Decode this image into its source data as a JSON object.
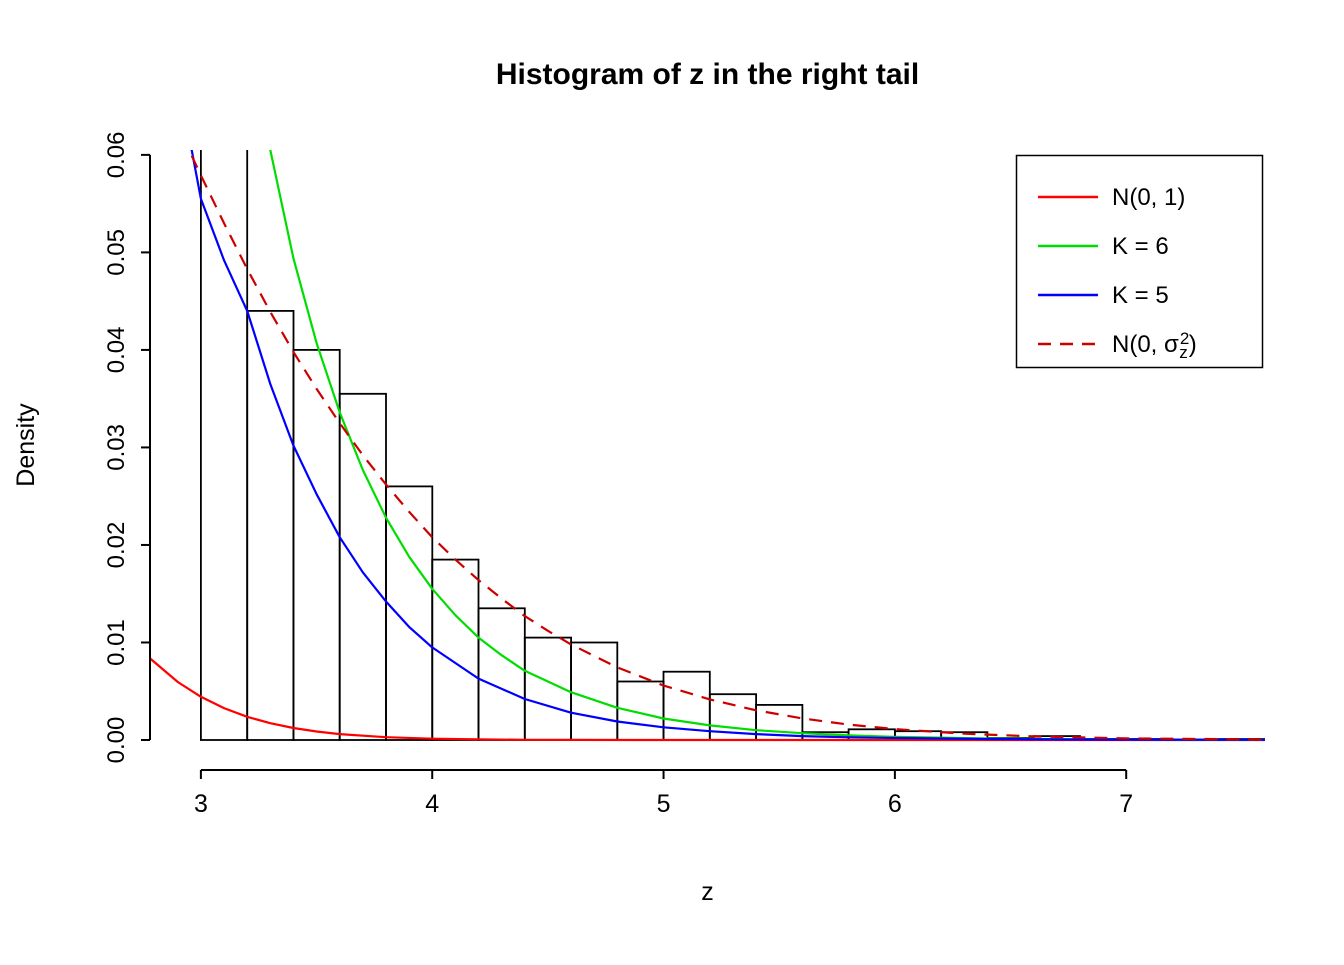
{
  "title": "Histogram of z in the right tail",
  "chart_data": {
    "type": "histogram",
    "title": "Histogram of z in the right tail",
    "xlabel": "z",
    "ylabel": "Density",
    "xlim": [
      2.78,
      7.6
    ],
    "ylim": [
      0,
      0.0605
    ],
    "x_tick_labels": [
      "3",
      "4",
      "5",
      "6",
      "7"
    ],
    "x_tick_values": [
      3,
      4,
      5,
      6,
      7
    ],
    "y_tick_labels": [
      "0.00",
      "0.01",
      "0.02",
      "0.03",
      "0.04",
      "0.05",
      "0.06"
    ],
    "y_tick_values": [
      0,
      0.01,
      0.02,
      0.03,
      0.04,
      0.05,
      0.06
    ],
    "grid": false,
    "legend_position": "top-right",
    "axis_color": "#000000",
    "histogram": {
      "bin_start": 3.0,
      "bin_width": 0.2,
      "bar_fill": "none",
      "bar_stroke": "#000000",
      "densities": [
        0.065,
        0.044,
        0.04,
        0.0355,
        0.026,
        0.0185,
        0.0135,
        0.0105,
        0.01,
        0.006,
        0.007,
        0.0047,
        0.0036,
        0.0008,
        0.0011,
        0.0009,
        0.0008,
        0.0002,
        0.0004,
        0.0001,
        0.0001,
        5e-05,
        0.0001
      ]
    },
    "series": [
      {
        "key": "n01",
        "name": "N(0, 1)",
        "color": "#ff0000",
        "dash": false,
        "label_parts": [
          {
            "t": "N(0, 1)"
          }
        ],
        "points": [
          [
            2.78,
            0.00837
          ],
          [
            2.9,
            0.00595
          ],
          [
            3.0,
            0.00443
          ],
          [
            3.1,
            0.00327
          ],
          [
            3.2,
            0.00238
          ],
          [
            3.3,
            0.00172
          ],
          [
            3.4,
            0.00123
          ],
          [
            3.5,
            0.00087
          ],
          [
            3.6,
            0.00061
          ],
          [
            3.8,
            0.00029
          ],
          [
            4.0,
            0.000134
          ],
          [
            4.2,
            5.9e-05
          ],
          [
            4.4,
            2.5e-05
          ],
          [
            4.6,
            1e-05
          ],
          [
            5.0,
            1.5e-06
          ],
          [
            5.5,
            2e-07
          ],
          [
            6.0,
            0
          ],
          [
            7.6,
            0
          ]
        ]
      },
      {
        "key": "k6",
        "name": "K = 6",
        "color": "#00dd00",
        "dash": false,
        "label_parts": [
          {
            "t": "K = 6"
          }
        ],
        "points": [
          [
            3.25,
            0.068
          ],
          [
            3.3,
            0.0605
          ],
          [
            3.4,
            0.0494
          ],
          [
            3.5,
            0.0407
          ],
          [
            3.6,
            0.0336
          ],
          [
            3.7,
            0.0277
          ],
          [
            3.8,
            0.0228
          ],
          [
            3.9,
            0.0188
          ],
          [
            4.0,
            0.0155
          ],
          [
            4.1,
            0.0128
          ],
          [
            4.2,
            0.0105
          ],
          [
            4.3,
            0.0087
          ],
          [
            4.4,
            0.0071
          ],
          [
            4.6,
            0.0049
          ],
          [
            4.8,
            0.0033
          ],
          [
            5.0,
            0.0022
          ],
          [
            5.2,
            0.0015
          ],
          [
            5.4,
            0.001
          ],
          [
            5.6,
            0.0007
          ],
          [
            5.8,
            0.00047
          ],
          [
            6.0,
            0.00032
          ],
          [
            6.4,
            0.00015
          ],
          [
            6.8,
            7e-05
          ],
          [
            7.2,
            3e-05
          ],
          [
            7.6,
            1.5e-05
          ]
        ]
      },
      {
        "key": "k5",
        "name": "K = 5",
        "color": "#0000ff",
        "dash": false,
        "label_parts": [
          {
            "t": "K = 5"
          }
        ],
        "points": [
          [
            2.9,
            0.068
          ],
          [
            2.95,
            0.0618
          ],
          [
            3.0,
            0.0555
          ],
          [
            3.1,
            0.0492
          ],
          [
            3.2,
            0.044
          ],
          [
            3.3,
            0.0365
          ],
          [
            3.4,
            0.0302
          ],
          [
            3.5,
            0.0252
          ],
          [
            3.6,
            0.0208
          ],
          [
            3.7,
            0.0172
          ],
          [
            3.8,
            0.0142
          ],
          [
            3.9,
            0.0116
          ],
          [
            4.0,
            0.0095
          ],
          [
            4.2,
            0.0063
          ],
          [
            4.4,
            0.0042
          ],
          [
            4.6,
            0.0028
          ],
          [
            4.8,
            0.0019
          ],
          [
            5.0,
            0.0013
          ],
          [
            5.2,
            0.0009
          ],
          [
            5.4,
            0.0006
          ],
          [
            5.6,
            0.0004
          ],
          [
            5.8,
            0.00028
          ],
          [
            6.0,
            0.0002
          ],
          [
            6.4,
            0.0001
          ],
          [
            6.8,
            5e-05
          ],
          [
            7.6,
            2e-05
          ]
        ]
      },
      {
        "key": "n0sigma",
        "name": "N(0, σ_z^2)",
        "color": "#cd0000",
        "dash": true,
        "label_parts": [
          {
            "t": "N(0, σ"
          },
          {
            "t": "2",
            "fs": 17,
            "dy": -8,
            "dx": 1
          },
          {
            "t": "z",
            "fs": 17,
            "dy": 14,
            "dx": -10
          },
          {
            "t": ")",
            "dy": -6,
            "dx": 1
          }
        ],
        "points": [
          [
            2.88,
            0.064
          ],
          [
            3.0,
            0.0579
          ],
          [
            3.1,
            0.053
          ],
          [
            3.2,
            0.0483
          ],
          [
            3.3,
            0.0439
          ],
          [
            3.4,
            0.0398
          ],
          [
            3.5,
            0.036
          ],
          [
            3.6,
            0.0325
          ],
          [
            3.7,
            0.0292
          ],
          [
            3.8,
            0.0262
          ],
          [
            3.9,
            0.0234
          ],
          [
            4.0,
            0.0208
          ],
          [
            4.1,
            0.0185
          ],
          [
            4.2,
            0.0164
          ],
          [
            4.3,
            0.0145
          ],
          [
            4.4,
            0.0127
          ],
          [
            4.5,
            0.0112
          ],
          [
            4.6,
            0.0098
          ],
          [
            4.8,
            0.00744
          ],
          [
            5.0,
            0.00559
          ],
          [
            5.2,
            0.00416
          ],
          [
            5.4,
            0.00305
          ],
          [
            5.6,
            0.00221
          ],
          [
            5.8,
            0.00158
          ],
          [
            6.0,
            0.00112
          ],
          [
            6.3,
            0.00065
          ],
          [
            6.6,
            0.00037
          ],
          [
            7.0,
            0.000168
          ],
          [
            7.6,
            4.65e-05
          ]
        ]
      }
    ]
  }
}
